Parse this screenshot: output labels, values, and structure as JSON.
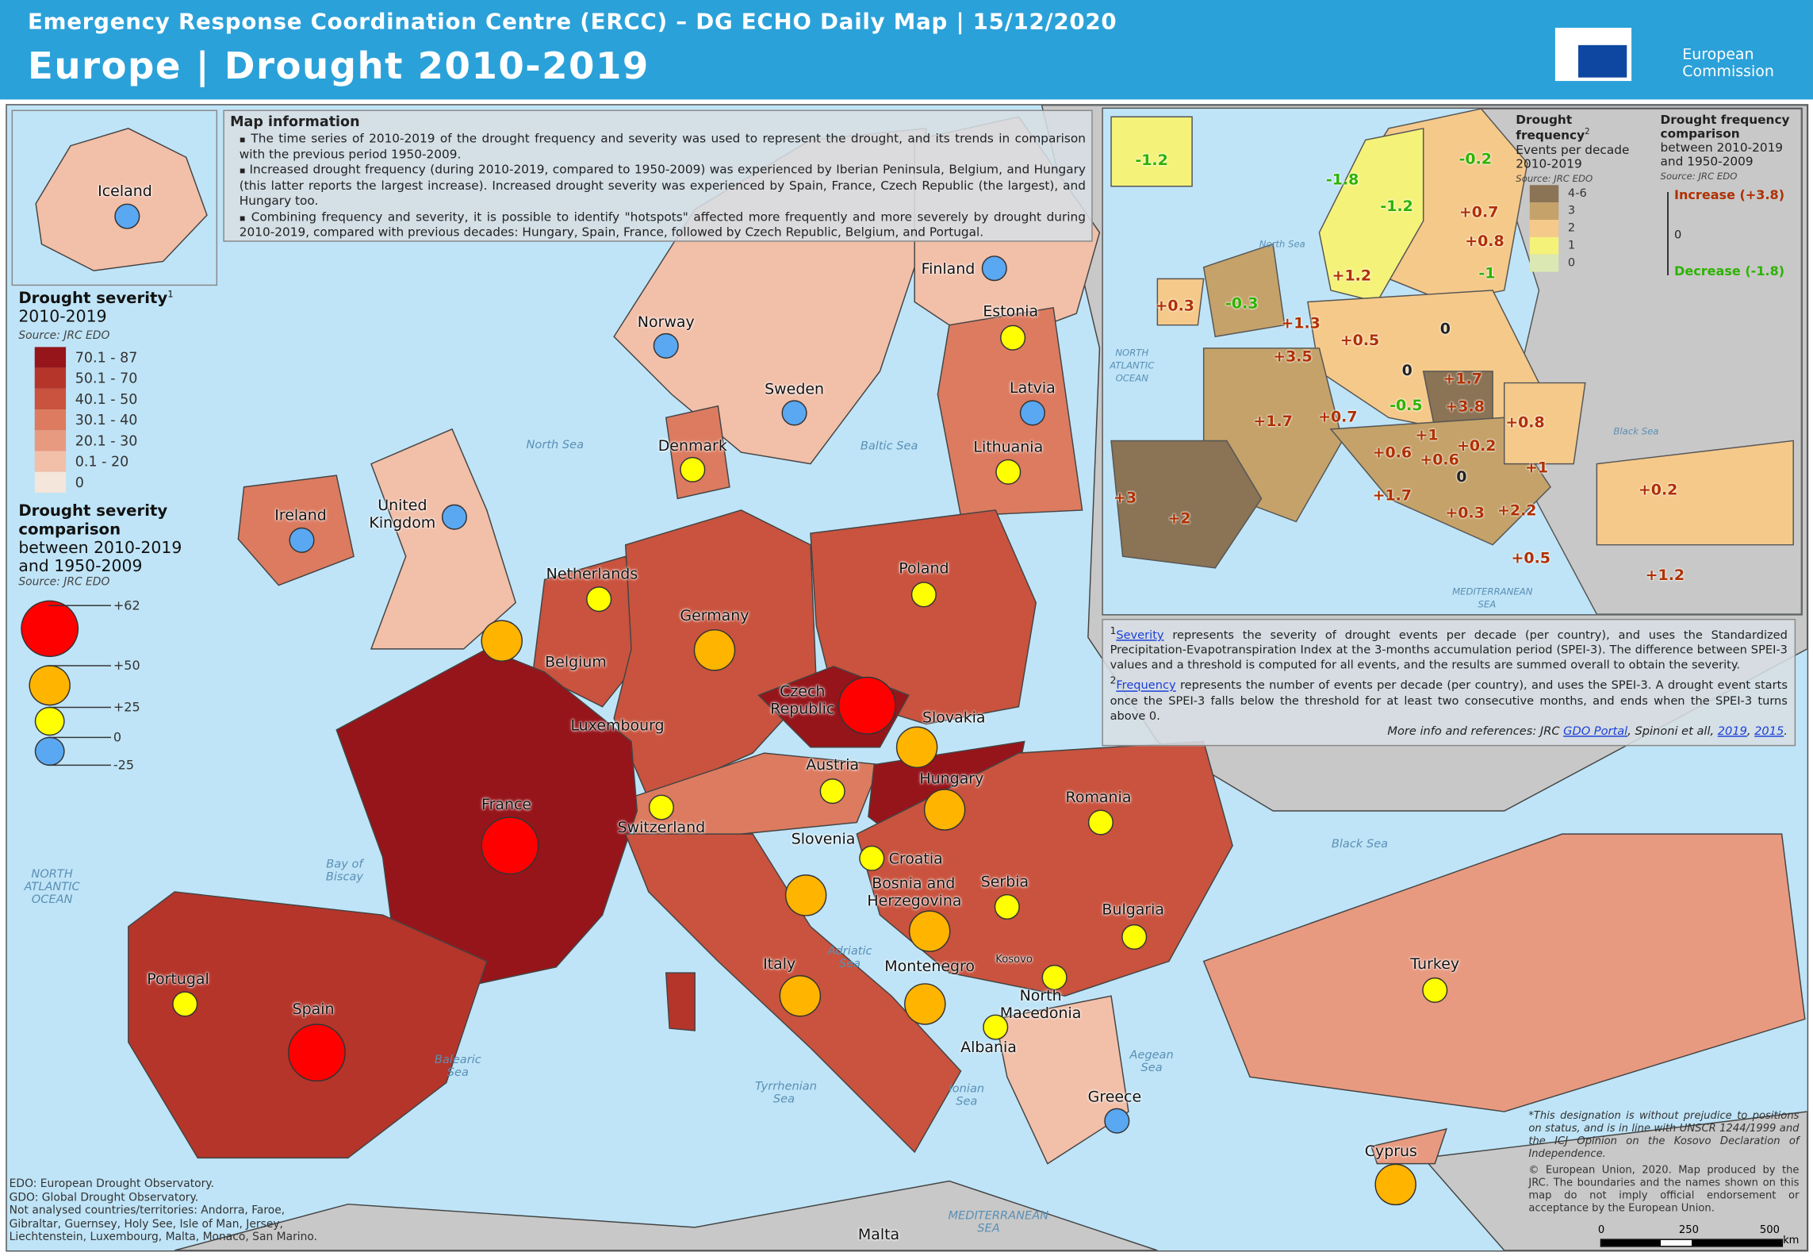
{
  "header": {
    "line1": "Emergency Response Coordination Centre (ERCC) – DG ECHO Daily Map | 15/12/2020",
    "line2": "Europe | Drought 2010-2019",
    "logo_text": [
      "European",
      "Commission"
    ]
  },
  "colors": {
    "header": "#2ba1d9",
    "sea": "#bfe4f7",
    "non_analysed": "#c8c8c8",
    "marker_high": "#ff0000",
    "marker_mid": "#ffb400",
    "marker_low": "#ffff00",
    "marker_neg": "#5aa7f2",
    "increase_text": "#b03000",
    "decrease_text": "#2db300"
  },
  "map_info": {
    "title": "Map information",
    "bullets": [
      "The time series of 2010-2019 of the drought frequency and severity was used to represent the drought, and its trends in comparison with the previous period 1950-2009.",
      "Increased drought frequency (during 2010-2019, compared to 1950-2009) was experienced by Iberian Peninsula, Belgium, and Hungary (this latter reports the largest increase). Increased drought severity was experienced by Spain, France, Czech Republic (the largest), and Hungary too.",
      "Combining frequency and severity, it is possible to identify \"hotspots\" affected more frequently and more severely by drought during 2010-2019, compared with previous decades: Hungary, Spain, France, followed by Czech Republic, Belgium, and Portugal."
    ]
  },
  "severity_legend": {
    "title": "Drought severity",
    "sup": "1",
    "period": "2010-2019",
    "source": "Source: JRC EDO",
    "classes": [
      {
        "label": "70.1 - 87",
        "color": "#96151a"
      },
      {
        "label": "50.1 - 70",
        "color": "#b5352a"
      },
      {
        "label": "40.1 - 50",
        "color": "#c9533e"
      },
      {
        "label": "30.1 - 40",
        "color": "#dc7b60"
      },
      {
        "label": "20.1 - 30",
        "color": "#e89a80"
      },
      {
        "label": "0.1 - 20",
        "color": "#f2bfa8"
      },
      {
        "label": "0",
        "color": "#f4e6da"
      }
    ]
  },
  "comparison_legend": {
    "title": "Drought severity comparison",
    "subtitle": "between 2010-2019 and 1950-2009",
    "source": "Source: JRC EDO",
    "breaks": [
      "+62",
      "+50",
      "+25",
      "0",
      "-25"
    ]
  },
  "countries": [
    {
      "name": "Iceland",
      "cls": "neg"
    },
    {
      "name": "Finland",
      "cls": "neg"
    },
    {
      "name": "Norway",
      "cls": "neg"
    },
    {
      "name": "Estonia",
      "cls": "low"
    },
    {
      "name": "Sweden",
      "cls": "neg"
    },
    {
      "name": "Latvia",
      "cls": "neg"
    },
    {
      "name": "Denmark",
      "cls": "low"
    },
    {
      "name": "Lithuania",
      "cls": "low"
    },
    {
      "name": "Ireland",
      "cls": "neg"
    },
    {
      "name": "United Kingdom",
      "cls": "neg"
    },
    {
      "name": "Netherlands",
      "cls": "low"
    },
    {
      "name": "Belgium",
      "cls": "mid"
    },
    {
      "name": "Germany",
      "cls": "mid"
    },
    {
      "name": "Poland",
      "cls": "low"
    },
    {
      "name": "Czech Republic",
      "cls": "high"
    },
    {
      "name": "Slovakia",
      "cls": "mid"
    },
    {
      "name": "Austria",
      "cls": "low"
    },
    {
      "name": "Hungary",
      "cls": "mid"
    },
    {
      "name": "Switzerland",
      "cls": "low"
    },
    {
      "name": "France",
      "cls": "high"
    },
    {
      "name": "Romania",
      "cls": "low"
    },
    {
      "name": "Slovenia",
      "cls": "mid"
    },
    {
      "name": "Croatia",
      "cls": "low"
    },
    {
      "name": "Bosnia and Herzegovina",
      "cls": "mid"
    },
    {
      "name": "Serbia",
      "cls": "low"
    },
    {
      "name": "Bulgaria",
      "cls": "low"
    },
    {
      "name": "Montenegro",
      "cls": "mid"
    },
    {
      "name": "North Macedonia",
      "cls": "low"
    },
    {
      "name": "Albania",
      "cls": "low"
    },
    {
      "name": "Italy",
      "cls": "mid"
    },
    {
      "name": "Portugal",
      "cls": "low"
    },
    {
      "name": "Spain",
      "cls": "high"
    },
    {
      "name": "Greece",
      "cls": "neg"
    },
    {
      "name": "Turkey",
      "cls": "low"
    },
    {
      "name": "Cyprus",
      "cls": "mid"
    }
  ],
  "other_labels": {
    "luxembourg": "Luxembourg",
    "kosovo": "Kosovo",
    "malta": "Malta"
  },
  "seas": [
    "North Sea",
    "Baltic Sea",
    "Bay of Biscay",
    "NORTH ATLANTIC OCEAN",
    "Balearic Sea",
    "Tyrrhenian Sea",
    "Adriatic Sea",
    "Ionian Sea",
    "Aegean Sea",
    "Black Sea",
    "MEDITERRANEAN SEA"
  ],
  "inset": {
    "freq_legend": {
      "title": "Drought frequency",
      "sup": "2",
      "subtitle": "Events per decade",
      "period": "2010-2019",
      "source": "Source: JRC EDO",
      "classes": [
        {
          "label": "4-6",
          "color": "#8b7355"
        },
        {
          "label": "3",
          "color": "#c4a26a"
        },
        {
          "label": "2",
          "color": "#f5c98a"
        },
        {
          "label": "1",
          "color": "#f5f27a"
        },
        {
          "label": "0",
          "color": "#dbe8b3"
        }
      ]
    },
    "comp_legend": {
      "title": "Drought frequency comparison",
      "subtitle": "between 2010-2019 and 1950-2009",
      "source": "Source: JRC EDO",
      "increase": "Increase (+3.8)",
      "decrease": "Decrease (-1.8)",
      "axis_label": "0"
    },
    "values": [
      "-1.2",
      "-1.8",
      "-1.2",
      "-0.2",
      "+0.7",
      "+0.8",
      "-1",
      "+1.2",
      "+0.3",
      "-0.3",
      "+1.3",
      "+3.5",
      "+0.5",
      "0",
      "0",
      "+1.7",
      "+3.8",
      "-0.5",
      "+1.7",
      "+0.7",
      "+0.8",
      "+1",
      "+0.2",
      "+0.6",
      "+0.6",
      "+1",
      "0",
      "+3",
      "+2",
      "+1.7",
      "+2.2",
      "+0.3",
      "+0.2",
      "+0.5",
      "+1.2"
    ],
    "seas": [
      "North Sea",
      "NORTH ATLANTIC OCEAN",
      "Black Sea",
      "MEDITERRANEAN SEA"
    ]
  },
  "footnotes": {
    "severity_link": "Severity",
    "severity_text": " represents the severity of drought events per decade (per country), and uses the Standardized Precipitation-Evapotranspiration Index at the 3-months accumulation period (SPEI-3). The difference between SPEI-3 values and a threshold is computed for all events, and the results are summed overall to obtain the severity.",
    "frequency_link": "Frequency",
    "frequency_text": " represents the number of events per decade (per country), and uses the SPEI-3. A drought event starts once the SPEI-3 falls below the threshold for at least two consecutive months, and ends when the SPEI-3 turns above 0.",
    "ref_prefix": "More info and references: JRC ",
    "ref_link1": "GDO Portal",
    "ref_mid": ", Spinoni et all, ",
    "ref_link2": "2019",
    "ref_sep": ", ",
    "ref_link3": "2015",
    "ref_end": "."
  },
  "notes": [
    "EDO: European Drought Observatory.",
    "GDO: Global Drought Observatory.",
    "Not analysed countries/territories: Andorra, Faroe, Gibraltar, Guernsey, Holy See, Isle of Man, Jersey, Liechtenstein, Luxembourg, Malta, Monaco, San Marino."
  ],
  "disclaimer": [
    "*This designation is without prejudice to positions on status, and is in line with UNSCR 1244/1999 and the ICJ Opinion on the Kosovo Declaration of Independence.",
    "© European Union, 2020. Map produced by the JRC. The boundaries and the names shown on this map do not imply official endorsement or acceptance by the European Union."
  ],
  "scalebar": {
    "ticks": [
      "0",
      "250",
      "500"
    ],
    "unit": "km"
  }
}
